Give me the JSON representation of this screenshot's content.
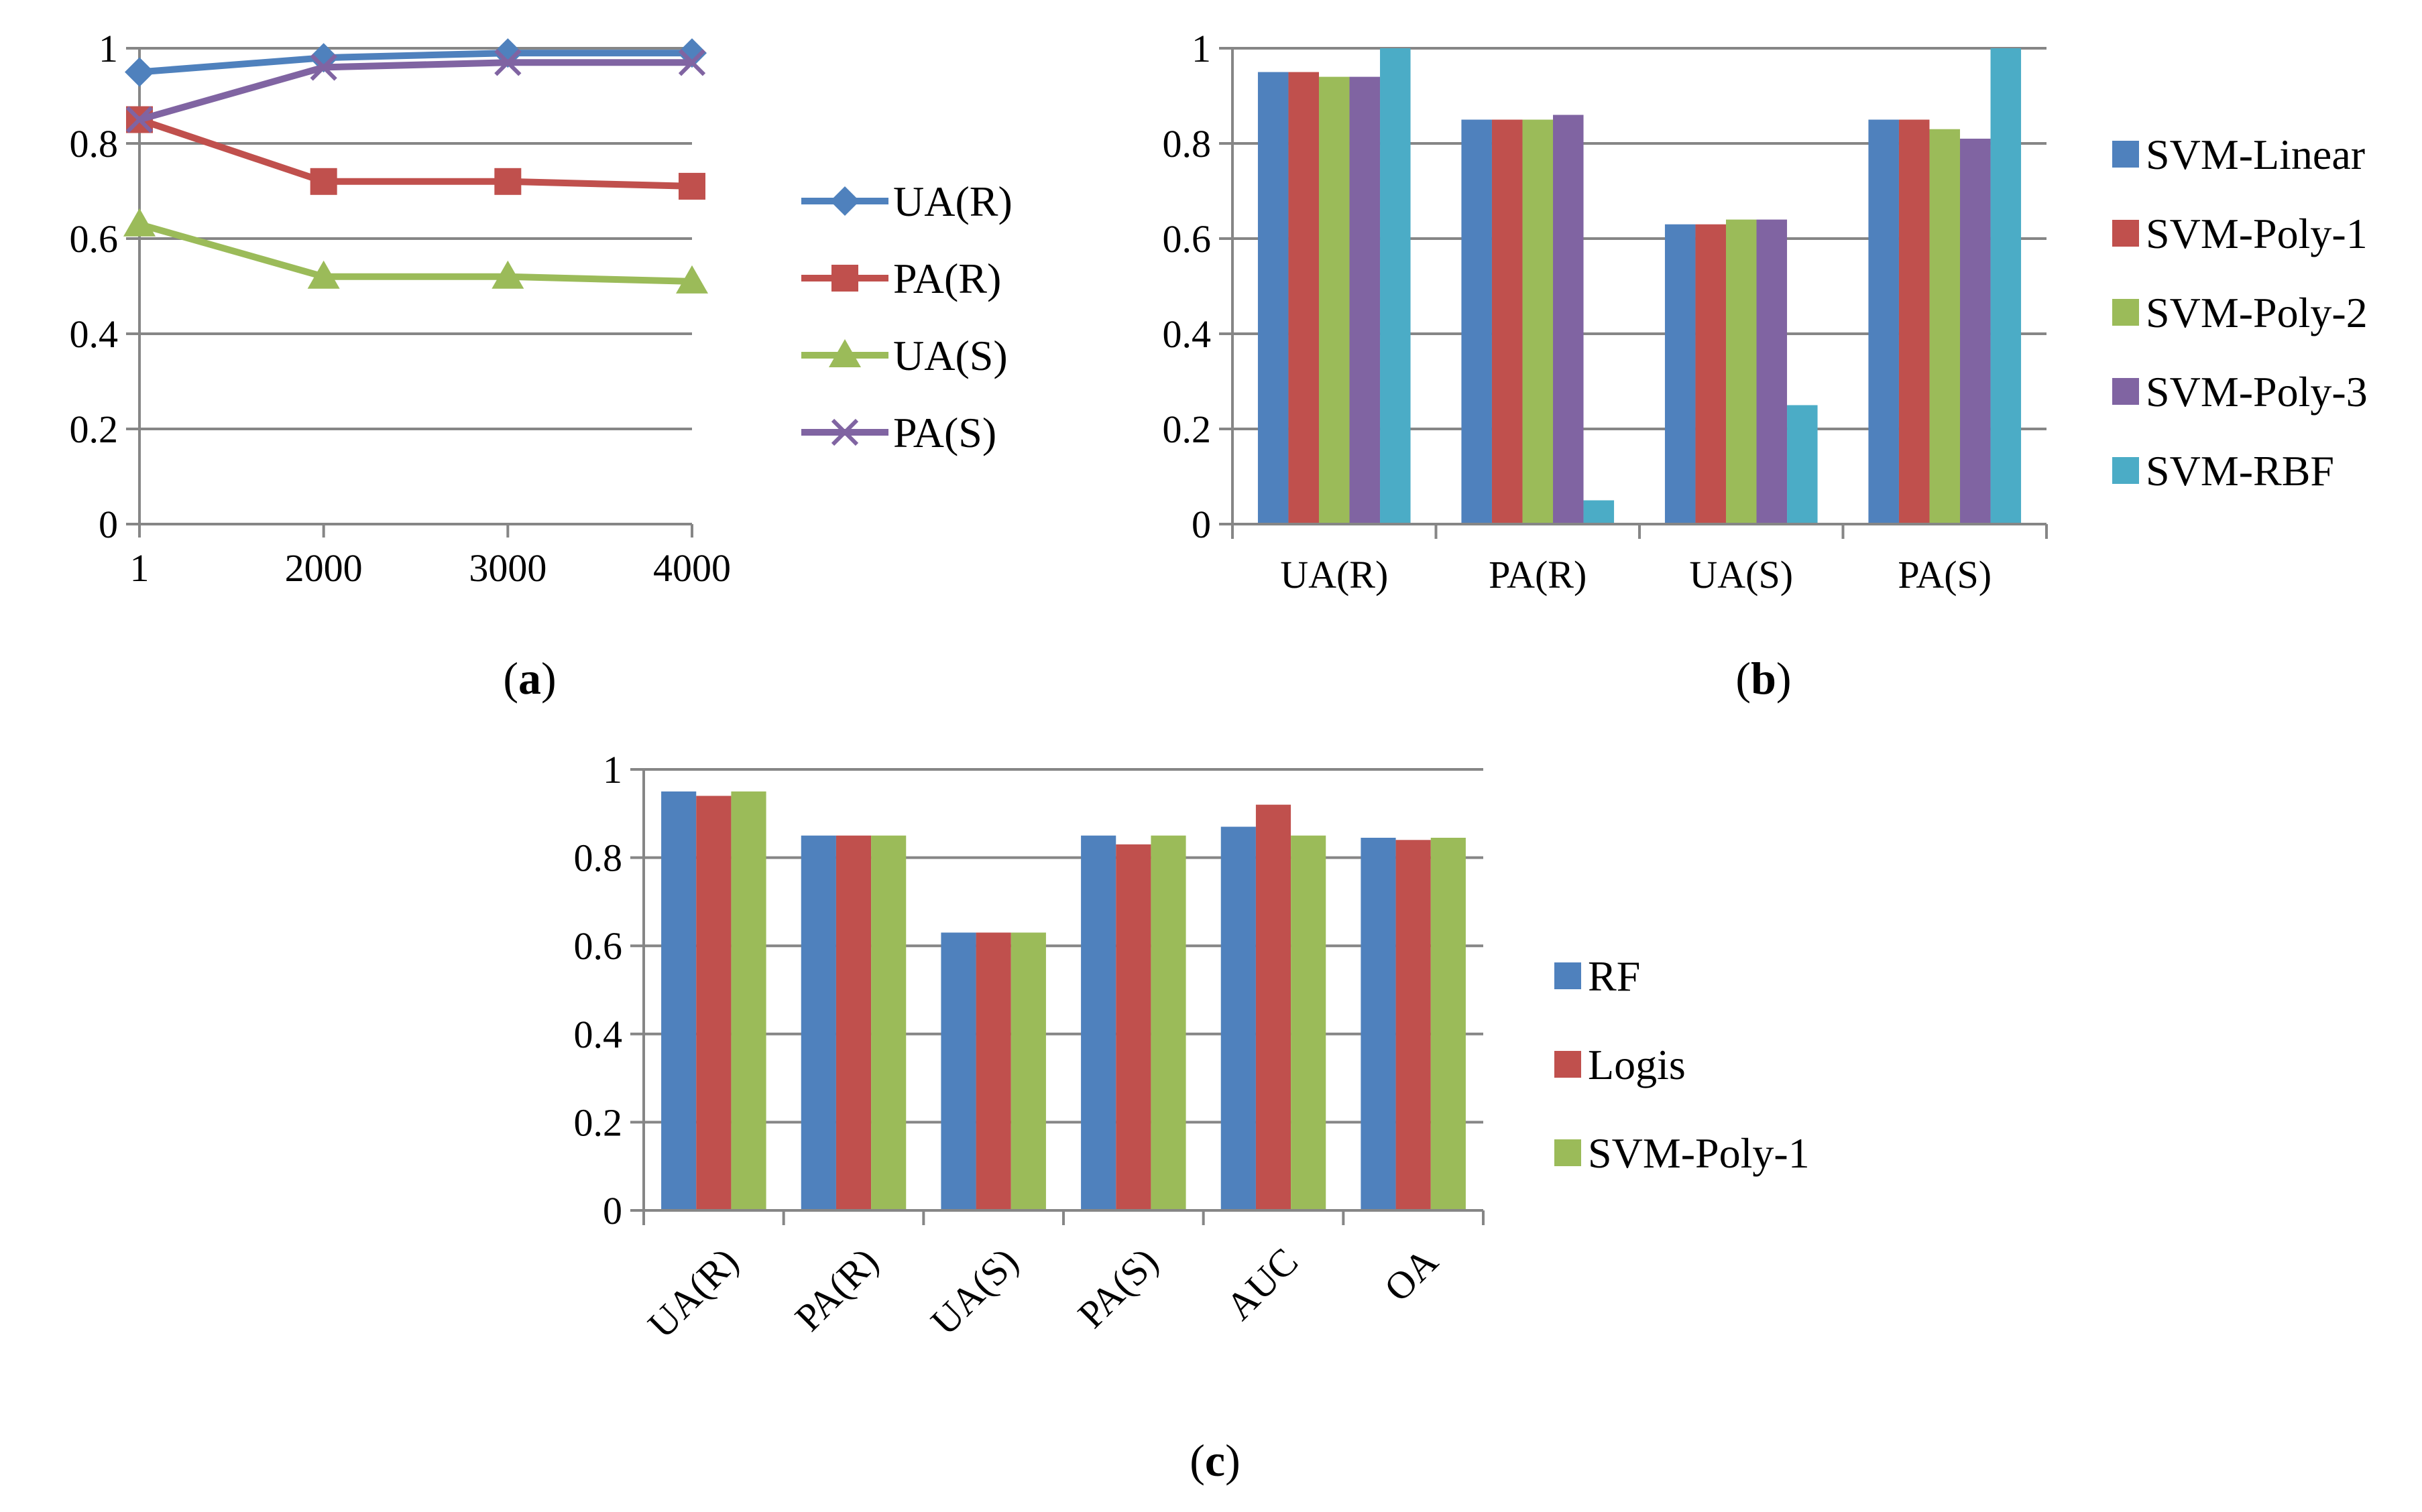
{
  "colors": {
    "blue": "#4F81BD",
    "red": "#C0504D",
    "green": "#9BBB59",
    "purple": "#8064A2",
    "cyan": "#4BACC6",
    "axis": "#868686",
    "grid": "#868686"
  },
  "chart_data": [
    {
      "id": "a",
      "type": "line",
      "caption": {
        "open": "(",
        "letter": "a",
        "close": ")"
      },
      "x": [
        "1",
        "2000",
        "3000",
        "4000"
      ],
      "yticks": [
        "0",
        "0.2",
        "0.4",
        "0.6",
        "0.8",
        "1"
      ],
      "ylim": [
        0,
        1
      ],
      "grid": true,
      "legend_position": "right",
      "series": [
        {
          "name": "UA(R)",
          "marker": "diamond",
          "color": "#4F81BD",
          "values": [
            0.95,
            0.98,
            0.99,
            0.99
          ]
        },
        {
          "name": "PA(R)",
          "marker": "square",
          "color": "#C0504D",
          "values": [
            0.85,
            0.72,
            0.72,
            0.71
          ]
        },
        {
          "name": "UA(S)",
          "marker": "triangle",
          "color": "#9BBB59",
          "values": [
            0.63,
            0.52,
            0.52,
            0.51
          ]
        },
        {
          "name": "PA(S)",
          "marker": "x",
          "color": "#8064A2",
          "values": [
            0.85,
            0.96,
            0.97,
            0.97
          ]
        }
      ]
    },
    {
      "id": "b",
      "type": "bar",
      "caption": {
        "open": "(",
        "letter": "b",
        "close": ")"
      },
      "categories": [
        "UA(R)",
        "PA(R)",
        "UA(S)",
        "PA(S)"
      ],
      "yticks": [
        "0",
        "0.2",
        "0.4",
        "0.6",
        "0.8",
        "1"
      ],
      "ylim": [
        0,
        1
      ],
      "grid": true,
      "legend_position": "right",
      "series": [
        {
          "name": "SVM-Linear",
          "color": "#4F81BD",
          "values": [
            0.95,
            0.85,
            0.63,
            0.85
          ]
        },
        {
          "name": "SVM-Poly-1",
          "color": "#C0504D",
          "values": [
            0.95,
            0.85,
            0.63,
            0.85
          ]
        },
        {
          "name": "SVM-Poly-2",
          "color": "#9BBB59",
          "values": [
            0.94,
            0.85,
            0.64,
            0.83
          ]
        },
        {
          "name": "SVM-Poly-3",
          "color": "#8064A2",
          "values": [
            0.94,
            0.86,
            0.64,
            0.81
          ]
        },
        {
          "name": "SVM-RBF",
          "color": "#4BACC6",
          "values": [
            1.0,
            0.05,
            0.25,
            1.0
          ]
        }
      ]
    },
    {
      "id": "c",
      "type": "bar",
      "caption": {
        "open": "(",
        "letter": "c",
        "close": ")"
      },
      "categories": [
        "UA(R)",
        "PA(R)",
        "UA(S)",
        "PA(S)",
        "AUC",
        "OA"
      ],
      "yticks": [
        "0",
        "0.2",
        "0.4",
        "0.6",
        "0.8",
        "1"
      ],
      "ylim": [
        0,
        1
      ],
      "grid": true,
      "legend_position": "right",
      "series": [
        {
          "name": "RF",
          "color": "#4F81BD",
          "values": [
            0.95,
            0.85,
            0.63,
            0.85,
            0.87,
            0.845
          ]
        },
        {
          "name": "Logis",
          "color": "#C0504D",
          "values": [
            0.94,
            0.85,
            0.63,
            0.83,
            0.92,
            0.84
          ]
        },
        {
          "name": "SVM-Poly-1",
          "color": "#9BBB59",
          "values": [
            0.95,
            0.85,
            0.63,
            0.85,
            0.85,
            0.845
          ]
        }
      ]
    }
  ]
}
